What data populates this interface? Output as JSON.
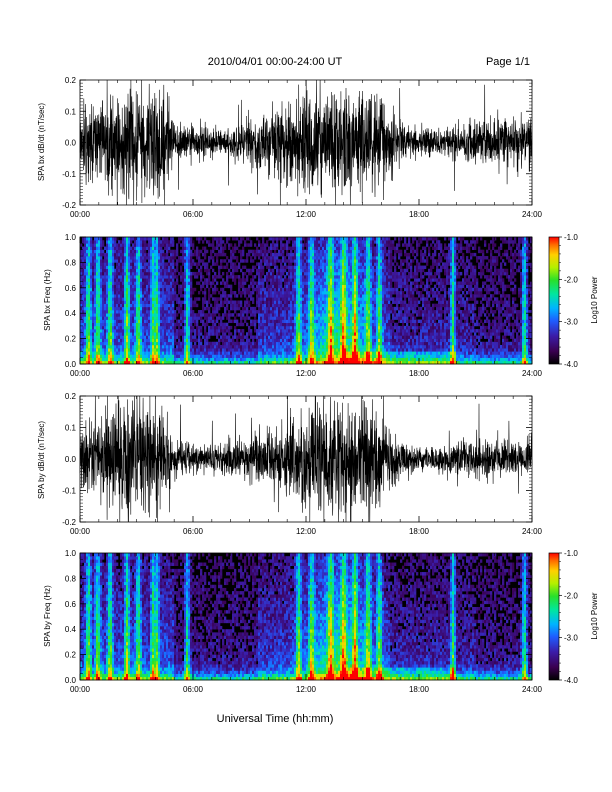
{
  "header": {
    "title": "2010/04/01   00:00-24:00 UT",
    "page": "Page 1/1"
  },
  "footer": {
    "xlabel": "Universal Time (hh:mm)"
  },
  "chart_data": [
    {
      "type": "line",
      "name": "SPA bx dB/dt",
      "ylabel": "SPA bx dB/dt (nT/sec)",
      "xlim": [
        "00:00",
        "24:00"
      ],
      "xticks": [
        "00:00",
        "06:00",
        "12:00",
        "18:00",
        "24:00"
      ],
      "ylim": [
        -0.2,
        0.2
      ],
      "yticks": [
        "-0.2",
        "-0.1",
        "0.0",
        "0.1",
        "0.2"
      ],
      "envelope": {
        "hours": [
          0,
          1,
          2,
          3,
          4,
          5,
          6,
          7,
          8,
          9,
          10,
          11,
          12,
          13,
          14,
          15,
          16,
          17,
          18,
          19,
          20,
          21,
          22,
          23,
          24
        ],
        "amplitude": [
          0.12,
          0.15,
          0.2,
          0.18,
          0.21,
          0.07,
          0.06,
          0.05,
          0.05,
          0.08,
          0.1,
          0.13,
          0.16,
          0.2,
          0.21,
          0.19,
          0.14,
          0.08,
          0.05,
          0.05,
          0.06,
          0.08,
          0.07,
          0.1,
          0.08
        ]
      },
      "grid": false
    },
    {
      "type": "heatmap",
      "name": "SPA bx Freq",
      "ylabel": "SPA bx Freq (Hz)",
      "xlim": [
        "00:00",
        "24:00"
      ],
      "xticks": [
        "00:00",
        "06:00",
        "12:00",
        "18:00",
        "24:00"
      ],
      "ylim": [
        0.0,
        1.0
      ],
      "yticks": [
        "0.0",
        "0.2",
        "0.4",
        "0.6",
        "0.8",
        "1.0"
      ],
      "colorbar": {
        "label": "Log10 Power",
        "range": [
          -4.0,
          -1.0
        ],
        "ticks": [
          "-1.0",
          "-2.0",
          "-3.0",
          "-4.0"
        ]
      }
    },
    {
      "type": "line",
      "name": "SPA by dB/dt",
      "ylabel": "SPA by dB/dt (nT/sec)",
      "xlim": [
        "00:00",
        "24:00"
      ],
      "xticks": [
        "00:00",
        "06:00",
        "12:00",
        "18:00",
        "24:00"
      ],
      "ylim": [
        -0.2,
        0.2
      ],
      "yticks": [
        "-0.2",
        "-0.1",
        "0.0",
        "0.1",
        "0.2"
      ],
      "envelope": {
        "hours": [
          0,
          1,
          2,
          3,
          4,
          5,
          6,
          7,
          8,
          9,
          10,
          11,
          12,
          13,
          14,
          15,
          16,
          17,
          18,
          19,
          20,
          21,
          22,
          23,
          24
        ],
        "amplitude": [
          0.1,
          0.13,
          0.2,
          0.2,
          0.21,
          0.06,
          0.05,
          0.05,
          0.06,
          0.08,
          0.1,
          0.12,
          0.18,
          0.2,
          0.21,
          0.2,
          0.14,
          0.07,
          0.04,
          0.04,
          0.05,
          0.07,
          0.06,
          0.06,
          0.05
        ]
      },
      "grid": false
    },
    {
      "type": "heatmap",
      "name": "SPA by Freq",
      "ylabel": "SPA by Freq (Hz)",
      "xlim": [
        "00:00",
        "24:00"
      ],
      "xticks": [
        "00:00",
        "06:00",
        "12:00",
        "18:00",
        "24:00"
      ],
      "ylim": [
        0.0,
        1.0
      ],
      "yticks": [
        "0.0",
        "0.2",
        "0.4",
        "0.6",
        "0.8",
        "1.0"
      ],
      "colorbar": {
        "label": "Log10 Power",
        "range": [
          -4.0,
          -1.0
        ],
        "ticks": [
          "-1.0",
          "-2.0",
          "-3.0",
          "-4.0"
        ]
      }
    }
  ]
}
